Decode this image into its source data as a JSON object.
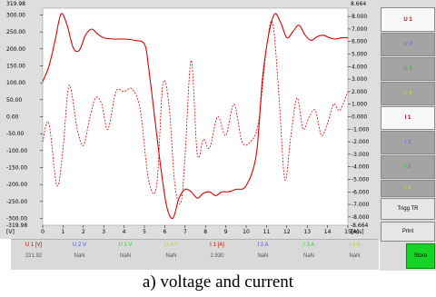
{
  "chart_data": {
    "type": "line",
    "x_label": "[ms]",
    "x_ticks": [
      0,
      1,
      2,
      3,
      4,
      5,
      6,
      7,
      8,
      9,
      10,
      11,
      12,
      13,
      14,
      15
    ],
    "x_range": [
      0,
      15
    ],
    "y_left": {
      "unit": "[V]",
      "range": [
        -319.98,
        319.98
      ],
      "top_label": "319.98",
      "bottom_label": "-319.98",
      "ticks": [
        "300.00",
        "250.00",
        "200.00",
        "150.00",
        "100.00",
        "50.00",
        "0.00",
        "-50.00",
        "-100.00",
        "-150.00",
        "-200.00",
        "-250.00",
        "-300.00"
      ]
    },
    "y_right": {
      "unit": "[A]",
      "range": [
        -8.664,
        8.664
      ],
      "top_label": "8.664",
      "bottom_label": "-8.664",
      "ticks": [
        "8.000",
        "7.000",
        "6.000",
        "5.000",
        "4.000",
        "3.000",
        "2.000",
        "1.000",
        "0.000",
        "-1.000",
        "-2.000",
        "-3.000",
        "-4.000",
        "-5.000",
        "-6.000",
        "-7.000",
        "-8.000"
      ]
    },
    "series": [
      {
        "name": "U 1",
        "style": "solid",
        "color": "#e00000",
        "axis": "right",
        "x": [
          0,
          0.3,
          0.6,
          0.9,
          1.2,
          1.5,
          1.8,
          2.1,
          2.4,
          2.7,
          3.0,
          3.5,
          4.0,
          4.5,
          5.0,
          5.2,
          5.5,
          5.8,
          6.1,
          6.4,
          6.7,
          7.0,
          7.3,
          7.6,
          7.9,
          8.2,
          8.5,
          8.8,
          9.1,
          9.5,
          10.0,
          10.5,
          10.8,
          11.1,
          11.4,
          11.7,
          12.0,
          12.3,
          12.6,
          12.9,
          13.2,
          13.5,
          13.8,
          14.1,
          14.4,
          14.7,
          15.0
        ],
        "y": [
          2.8,
          4.0,
          6.0,
          8.2,
          7.3,
          5.5,
          5.3,
          6.5,
          7.0,
          6.6,
          6.3,
          6.2,
          6.2,
          6.1,
          5.8,
          4.0,
          0.0,
          -4.0,
          -7.2,
          -8.1,
          -6.5,
          -5.8,
          -6.0,
          -6.5,
          -6.1,
          -6.0,
          -6.3,
          -6.0,
          -6.0,
          -5.8,
          -5.5,
          -3.0,
          3.0,
          6.5,
          8.2,
          7.5,
          6.3,
          6.8,
          7.3,
          6.5,
          6.1,
          6.4,
          6.5,
          6.3,
          6.2,
          6.3,
          6.3
        ]
      },
      {
        "name": "I 1",
        "style": "dashed",
        "color": "#e00000",
        "axis": "right",
        "x": [
          0,
          0.3,
          0.7,
          1.0,
          1.3,
          1.7,
          2.0,
          2.3,
          2.6,
          2.9,
          3.2,
          3.6,
          4.0,
          4.4,
          4.8,
          5.2,
          5.6,
          5.9,
          6.2,
          6.5,
          6.8,
          7.0,
          7.3,
          7.6,
          7.9,
          8.2,
          8.6,
          9.0,
          9.4,
          9.8,
          10.2,
          10.6,
          11.0,
          11.3,
          11.6,
          11.9,
          12.2,
          12.5,
          12.8,
          13.1,
          13.4,
          13.7,
          14.0,
          14.3,
          14.6,
          15.0
        ],
        "y": [
          -2.0,
          -0.5,
          -5.5,
          -2.5,
          2.5,
          -1.0,
          -2.3,
          -0.2,
          1.5,
          1.0,
          -1.0,
          2.0,
          2.0,
          2.2,
          0.5,
          -5.0,
          -5.5,
          2.5,
          1.0,
          -5.5,
          -6.8,
          -3.0,
          4.5,
          -3.0,
          -1.8,
          -2.5,
          0.0,
          -1.5,
          1.0,
          -2.0,
          -2.0,
          -0.5,
          5.5,
          7.5,
          2.0,
          -5.0,
          -1.5,
          1.5,
          -1.0,
          0.0,
          0.5,
          -1.5,
          -0.5,
          1.0,
          0.5,
          2.0
        ]
      }
    ]
  },
  "channels": [
    {
      "name": "U 1 [V]",
      "value": "221.92",
      "color": "#d00000"
    },
    {
      "name": "U 2 V",
      "value": "NaN",
      "color": "#4a4aff"
    },
    {
      "name": "U 3 V",
      "value": "NaN",
      "color": "#38c838"
    },
    {
      "name": "U 4 V",
      "value": "NaN",
      "color": "#c8c830"
    },
    {
      "name": "I 1 [A]",
      "value": "2.930",
      "color": "#d00000"
    },
    {
      "name": "I 2 A",
      "value": "NaN",
      "color": "#4a4aff"
    },
    {
      "name": "I 3 A",
      "value": "NaN",
      "color": "#38c838"
    },
    {
      "name": "I 4 A",
      "value": "NaN",
      "color": "#c8c830"
    }
  ],
  "sidebar": {
    "buttons": [
      {
        "label": "U 1",
        "kind": "sel",
        "color": "#d00000"
      },
      {
        "label": "U 2",
        "kind": "dim",
        "color": "#5a5aff"
      },
      {
        "label": "U 3",
        "kind": "dim",
        "color": "#30b030"
      },
      {
        "label": "U 4",
        "kind": "dim",
        "color": "#d8d820"
      },
      {
        "label": "I 1",
        "kind": "sel",
        "color": "#d00000"
      },
      {
        "label": "I 2",
        "kind": "dim",
        "color": "#5a5aff"
      },
      {
        "label": "I 3",
        "kind": "dim",
        "color": "#30b030"
      },
      {
        "label": "I 4",
        "kind": "dim",
        "color": "#d8d820"
      },
      {
        "label": "Trigg TR",
        "kind": "plain",
        "color": "#000000"
      },
      {
        "label": "Print",
        "kind": "plain",
        "color": "#000000"
      }
    ],
    "store_label": "Store"
  },
  "caption": "a) voltage and current"
}
